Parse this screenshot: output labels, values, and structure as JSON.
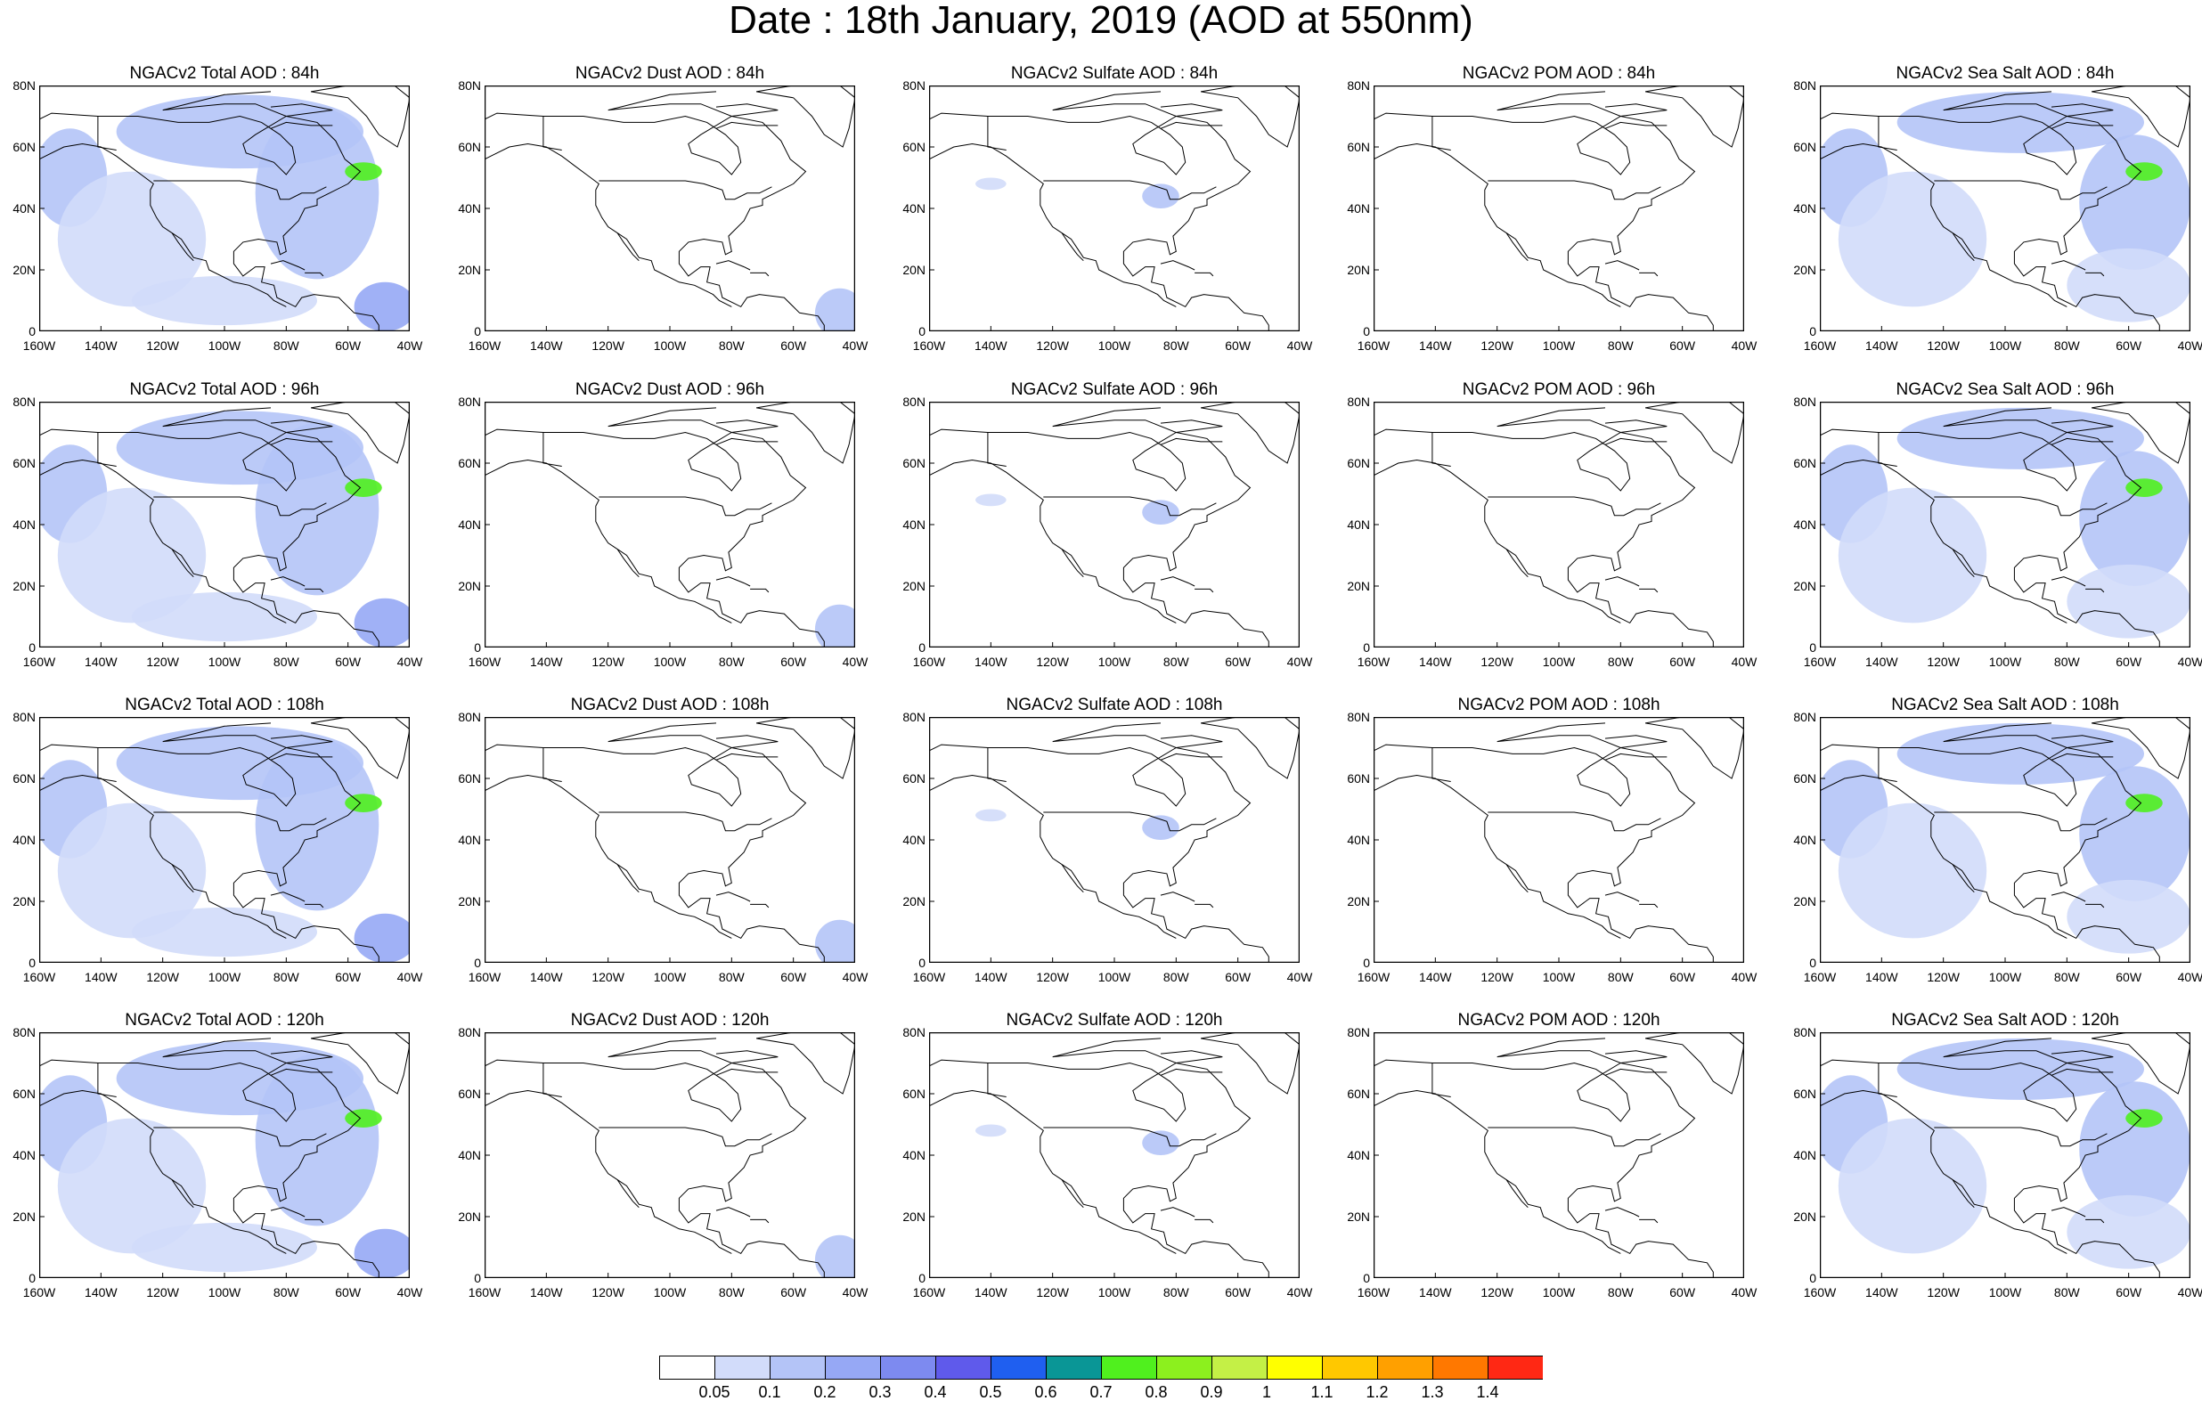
{
  "title": "Date : 18th January, 2019 (AOD at 550nm)",
  "lat_labels": [
    "80N",
    "60N",
    "40N",
    "20N",
    "0"
  ],
  "lon_labels": [
    "160W",
    "140W",
    "120W",
    "100W",
    "80W",
    "60W",
    "40W"
  ],
  "panels": [
    [
      {
        "title": "NGACv2 Total AOD : 84h",
        "field": "total",
        "lead": 84
      },
      {
        "title": "NGACv2 Dust AOD : 84h",
        "field": "dust",
        "lead": 84
      },
      {
        "title": "NGACv2 Sulfate AOD : 84h",
        "field": "sulfate",
        "lead": 84
      },
      {
        "title": "NGACv2 POM AOD : 84h",
        "field": "pom",
        "lead": 84
      },
      {
        "title": "NGACv2 Sea Salt AOD : 84h",
        "field": "seasalt",
        "lead": 84
      }
    ],
    [
      {
        "title": "NGACv2 Total AOD : 96h",
        "field": "total",
        "lead": 96
      },
      {
        "title": "NGACv2 Dust AOD : 96h",
        "field": "dust",
        "lead": 96
      },
      {
        "title": "NGACv2 Sulfate AOD : 96h",
        "field": "sulfate",
        "lead": 96
      },
      {
        "title": "NGACv2 POM AOD : 96h",
        "field": "pom",
        "lead": 96
      },
      {
        "title": "NGACv2 Sea Salt AOD : 96h",
        "field": "seasalt",
        "lead": 96
      }
    ],
    [
      {
        "title": "NGACv2 Total AOD : 108h",
        "field": "total",
        "lead": 108
      },
      {
        "title": "NGACv2 Dust AOD : 108h",
        "field": "dust",
        "lead": 108
      },
      {
        "title": "NGACv2 Sulfate AOD : 108h",
        "field": "sulfate",
        "lead": 108
      },
      {
        "title": "NGACv2 POM AOD : 108h",
        "field": "pom",
        "lead": 108
      },
      {
        "title": "NGACv2 Sea Salt AOD : 108h",
        "field": "seasalt",
        "lead": 108
      }
    ],
    [
      {
        "title": "NGACv2 Total AOD : 120h",
        "field": "total",
        "lead": 120
      },
      {
        "title": "NGACv2 Dust AOD : 120h",
        "field": "dust",
        "lead": 120
      },
      {
        "title": "NGACv2 Sulfate AOD : 120h",
        "field": "sulfate",
        "lead": 120
      },
      {
        "title": "NGACv2 POM AOD : 120h",
        "field": "pom",
        "lead": 120
      },
      {
        "title": "NGACv2 Sea Salt  AOD : 120h",
        "field": "seasalt",
        "lead": 120
      }
    ]
  ],
  "map_extent": {
    "lon_min": -160,
    "lon_max": -40,
    "lat_min": 0,
    "lat_max": 80
  },
  "colorbar": {
    "labels": [
      "0.05",
      "0.1",
      "0.2",
      "0.3",
      "0.4",
      "0.5",
      "0.6",
      "0.7",
      "0.8",
      "0.9",
      "1",
      "1.1",
      "1.2",
      "1.3",
      "1.4"
    ],
    "colors": [
      "#ffffff",
      "#d2dcfa",
      "#b4c4f7",
      "#96a8f5",
      "#7d8af0",
      "#5f5aeb",
      "#1f5ff0",
      "#0a9696",
      "#50f01e",
      "#8cf01e",
      "#c4f046",
      "#ffff00",
      "#ffc800",
      "#ffa000",
      "#ff7800",
      "#ff2814"
    ]
  },
  "colors": {
    "land_line": "#000000",
    "aod_low": "#d2dcfa",
    "aod_mid": "#b4c4f7",
    "aod_high": "#96a8f5",
    "aod_peak": "#50f01e"
  }
}
